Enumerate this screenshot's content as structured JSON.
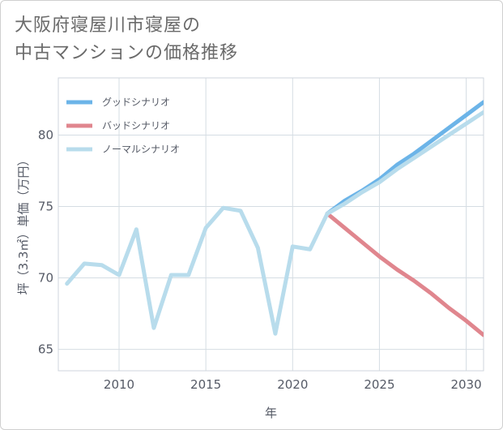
{
  "title": {
    "line1": "大阪府寝屋川市寝屋の",
    "line2": "中古マンションの価格推移"
  },
  "chart_data": {
    "type": "line",
    "xlabel": "年",
    "ylabel": "坪（3.3㎡）単価（万円）",
    "xlim": [
      2006.5,
      2031
    ],
    "ylim": [
      63.5,
      84
    ],
    "xticks": [
      2010,
      2015,
      2020,
      2025,
      2030
    ],
    "yticks": [
      65,
      70,
      75,
      80
    ],
    "legend_position": "top-left",
    "series": [
      {
        "name": "グッドシナリオ",
        "color": "#6cb4e8",
        "x": [
          2022,
          2023,
          2024,
          2025,
          2026,
          2027,
          2028,
          2029,
          2030,
          2031
        ],
        "y": [
          74.5,
          75.4,
          76.1,
          76.9,
          77.9,
          78.7,
          79.6,
          80.5,
          81.4,
          82.3
        ]
      },
      {
        "name": "バッドシナリオ",
        "color": "#e0868e",
        "x": [
          2022,
          2023,
          2024,
          2025,
          2026,
          2027,
          2028,
          2029,
          2030,
          2031
        ],
        "y": [
          74.5,
          73.5,
          72.5,
          71.5,
          70.6,
          69.8,
          68.9,
          67.9,
          67.0,
          66.0
        ]
      },
      {
        "name": "ノーマルシナリオ",
        "color": "#b8dcec",
        "x": [
          2007,
          2008,
          2009,
          2010,
          2011,
          2012,
          2013,
          2014,
          2015,
          2016,
          2017,
          2018,
          2019,
          2020,
          2021,
          2022,
          2023,
          2024,
          2025,
          2026,
          2027,
          2028,
          2029,
          2030,
          2031
        ],
        "y": [
          69.6,
          71.0,
          70.9,
          70.2,
          73.4,
          66.5,
          70.2,
          70.2,
          73.5,
          74.9,
          74.7,
          72.1,
          66.1,
          72.2,
          72.0,
          74.5,
          75.2,
          76.0,
          76.7,
          77.6,
          78.4,
          79.2,
          80.0,
          80.8,
          81.6
        ]
      }
    ]
  }
}
